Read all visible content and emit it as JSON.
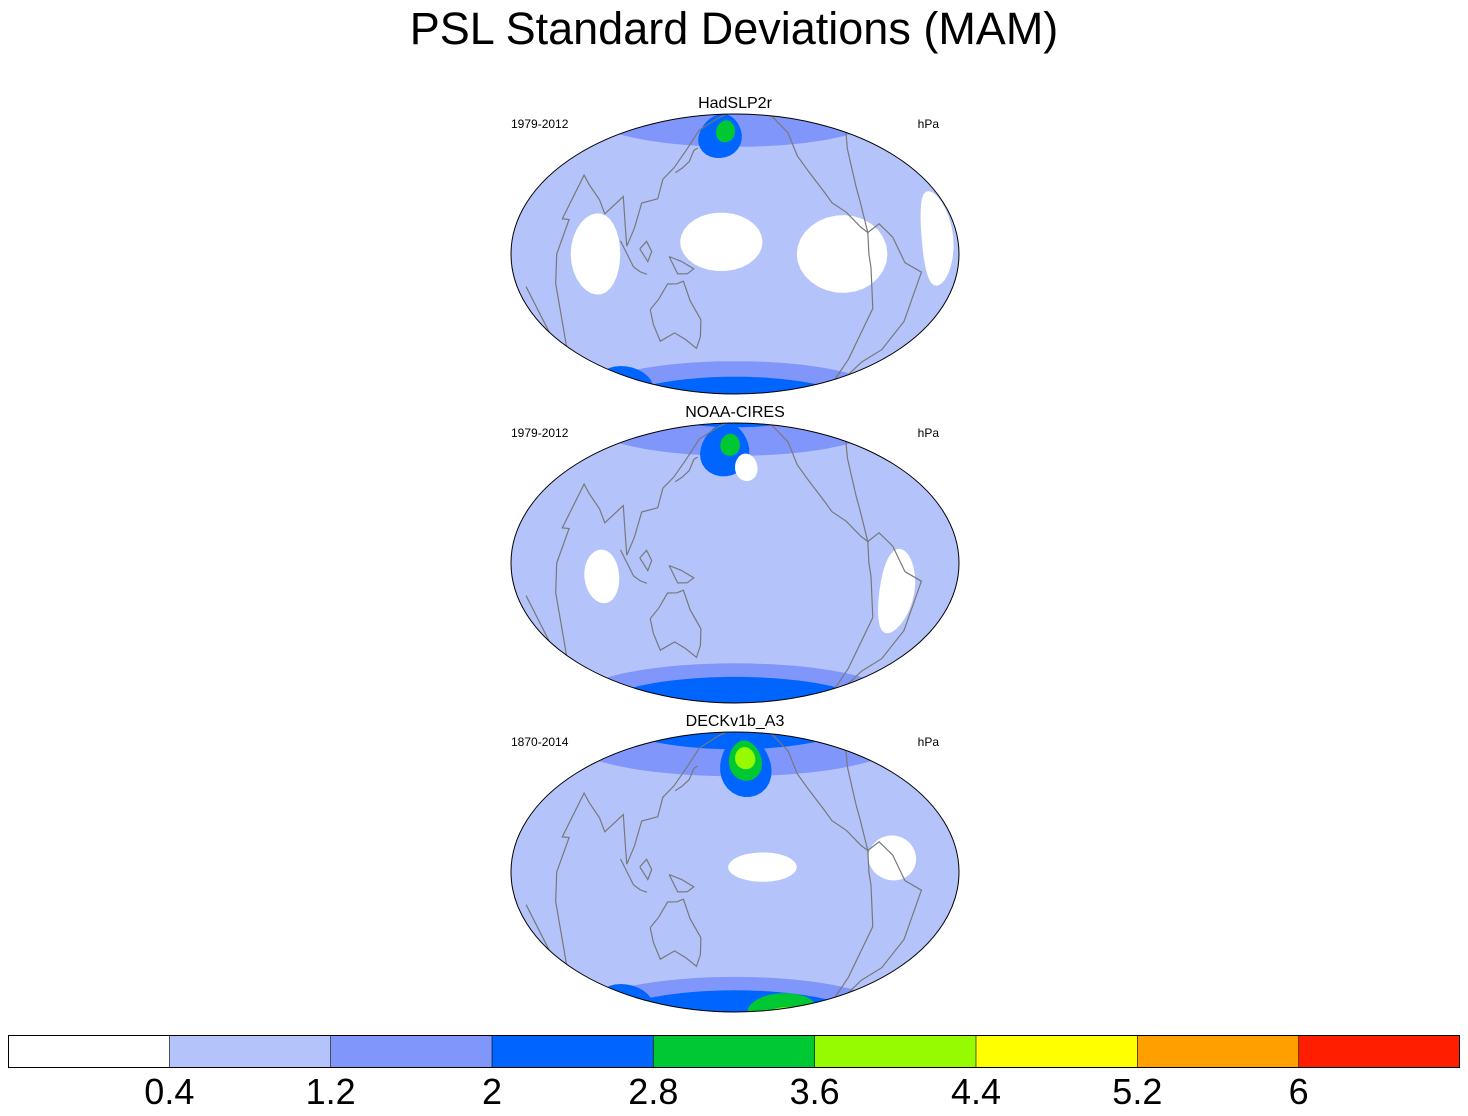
{
  "title": "PSL Standard Deviations (MAM)",
  "panels": [
    {
      "name": "HadSLP2r",
      "period": "1979-2012",
      "units": "hPa",
      "dataset": "had"
    },
    {
      "name": "NOAA-CIRES",
      "period": "1979-2012",
      "units": "hPa",
      "dataset": "noaa"
    },
    {
      "name": "DECKv1b_A3",
      "period": "1870-2014",
      "units": "hPa",
      "dataset": "deck"
    }
  ],
  "colorbar": {
    "labels": [
      "0.4",
      "1.2",
      "2",
      "2.8",
      "3.6",
      "4.4",
      "5.2",
      "6"
    ],
    "colors": [
      "#ffffff",
      "#b4c4fa",
      "#8096fb",
      "#0064ff",
      "#00c832",
      "#96fa00",
      "#ffff00",
      "#ffa000",
      "#ff1e00"
    ]
  },
  "colors": {
    "coastline": "#787878",
    "outline": "#000000"
  }
}
